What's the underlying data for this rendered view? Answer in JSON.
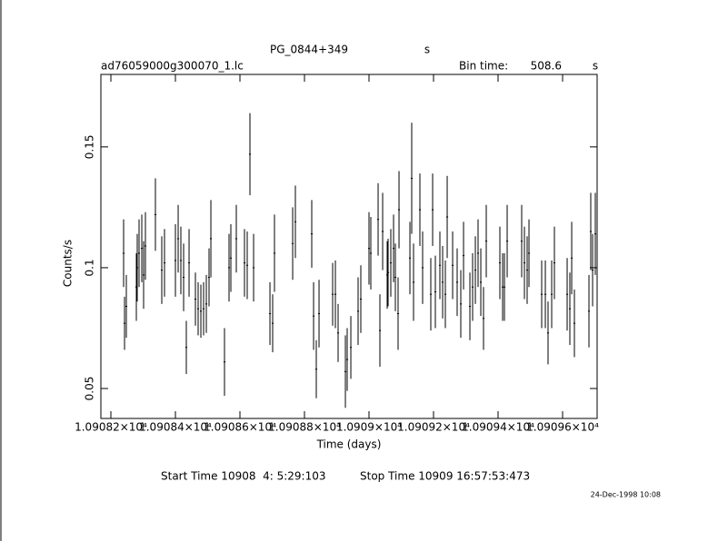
{
  "chart_data": {
    "type": "errorbar",
    "title": "PG_0844+349",
    "title_unit": "s",
    "subtitle": "ad76059000g300070_1.lc",
    "bin_time_label": "Bin time:",
    "bin_time": 508.6,
    "bin_time_unit": "s",
    "xlabel": "Time (days)",
    "ylabel": "Counts/s",
    "start_time": "Start Time 10908  4: 5:29:103",
    "stop_time": "Stop Time 10909 16:57:53:473",
    "date": "24-Dec-1998 10:08",
    "xlim": [
      10908.169,
      10909.707
    ],
    "xticks": [
      {
        "value": 10908.2,
        "label": "1.09082×10⁴"
      },
      {
        "value": 10908.4,
        "label": "1.09084×10⁴"
      },
      {
        "value": 10908.6,
        "label": "1.09086×10⁴"
      },
      {
        "value": 10908.8,
        "label": "1.09088×10⁴"
      },
      {
        "value": 10909.0,
        "label": "1.0909×10⁴"
      },
      {
        "value": 10909.2,
        "label": "1.09092×10⁴"
      },
      {
        "value": 10909.4,
        "label": "1.09094×10⁴"
      },
      {
        "value": 10909.6,
        "label": "1.09096×10⁴"
      }
    ],
    "ylim": [
      0.0376,
      0.18
    ],
    "yticks": [
      0.05,
      0.1,
      0.15
    ],
    "series": [
      {
        "color": "#000000",
        "x": [
          10908.2394,
          10908.2423,
          10908.2479,
          10908.2789,
          10908.2817,
          10908.2873,
          10908.2958,
          10908.3014,
          10908.307,
          10908.338,
          10908.3577,
          10908.3662,
          10908.4,
          10908.4085,
          10908.4169,
          10908.4254,
          10908.4338,
          10908.4423,
          10908.462,
          10908.4704,
          10908.4789,
          10908.4873,
          10908.4958,
          10908.5042,
          10908.5099,
          10908.5521,
          10908.5662,
          10908.5718,
          10908.5887,
          10908.6141,
          10908.6225,
          10908.631,
          10908.6423,
          10908.693,
          10908.7014,
          10908.707,
          10908.7634,
          10908.7718,
          10908.8225,
          10908.8282,
          10908.8366,
          10908.8451,
          10908.8873,
          10908.8958,
          10908.9042,
          10908.9268,
          10908.9324,
          10908.9437,
          10908.9662,
          10908.9746,
          10909.0,
          10909.0056,
          10909.0282,
          10909.0338,
          10909.0423,
          10909.0563,
          10909.0592,
          10909.0676,
          10909.0761,
          10909.0817,
          10909.0901,
          10909.093,
          10909.1268,
          10909.1324,
          10909.138,
          10909.1577,
          10909.1662,
          10909.1915,
          10909.1972,
          10909.2056,
          10909.2197,
          10909.2282,
          10909.2366,
          10909.2423,
          10909.2592,
          10909.2732,
          10909.2845,
          10909.293,
          10909.3127,
          10909.3211,
          10909.3296,
          10909.338,
          10909.3465,
          10909.3549,
          10909.3634,
          10909.4056,
          10909.4141,
          10909.4197,
          10909.4282,
          10909.4732,
          10909.4817,
          10909.4901,
          10909.4958,
          10909.5352,
          10909.5465,
          10909.5549,
          10909.5662,
          10909.5746,
          10909.6141,
          10909.6225,
          10909.6282,
          10909.6366,
          10909.6817,
          10909.6873,
          10909.693,
          10909.7014
        ],
        "values": [
          0.106,
          0.077,
          0.084,
          0.092,
          0.1,
          0.106,
          0.108,
          0.097,
          0.109,
          0.122,
          0.099,
          0.102,
          0.103,
          0.112,
          0.103,
          0.096,
          0.067,
          0.102,
          0.087,
          0.083,
          0.082,
          0.083,
          0.085,
          0.096,
          0.112,
          0.061,
          0.1,
          0.104,
          0.112,
          0.102,
          0.101,
          0.147,
          0.1,
          0.081,
          0.077,
          0.106,
          0.11,
          0.119,
          0.114,
          0.08,
          0.058,
          0.081,
          0.089,
          0.089,
          0.073,
          0.057,
          0.062,
          0.067,
          0.082,
          0.087,
          0.108,
          0.106,
          0.12,
          0.074,
          0.115,
          0.097,
          0.098,
          0.102,
          0.108,
          0.096,
          0.081,
          0.124,
          0.104,
          0.137,
          0.094,
          0.124,
          0.1,
          0.089,
          0.124,
          0.09,
          0.101,
          0.094,
          0.089,
          0.121,
          0.101,
          0.094,
          0.085,
          0.105,
          0.084,
          0.092,
          0.099,
          0.106,
          0.094,
          0.079,
          0.111,
          0.102,
          0.092,
          0.092,
          0.111,
          0.111,
          0.102,
          0.099,
          0.106,
          0.089,
          0.089,
          0.073,
          0.089,
          0.102,
          0.089,
          0.083,
          0.104,
          0.077,
          0.082,
          0.115,
          0.099,
          0.114
        ],
        "errors": [
          0.014,
          0.011,
          0.013,
          0.014,
          0.014,
          0.014,
          0.014,
          0.014,
          0.014,
          0.015,
          0.014,
          0.014,
          0.015,
          0.014,
          0.014,
          0.014,
          0.011,
          0.014,
          0.011,
          0.011,
          0.011,
          0.011,
          0.012,
          0.012,
          0.016,
          0.014,
          0.014,
          0.014,
          0.014,
          0.014,
          0.014,
          0.017,
          0.014,
          0.013,
          0.012,
          0.016,
          0.015,
          0.015,
          0.014,
          0.014,
          0.012,
          0.014,
          0.013,
          0.014,
          0.012,
          0.015,
          0.013,
          0.013,
          0.014,
          0.014,
          0.015,
          0.015,
          0.015,
          0.015,
          0.016,
          0.014,
          0.014,
          0.014,
          0.014,
          0.014,
          0.015,
          0.016,
          0.015,
          0.023,
          0.016,
          0.015,
          0.015,
          0.015,
          0.015,
          0.015,
          0.014,
          0.015,
          0.014,
          0.017,
          0.014,
          0.014,
          0.014,
          0.014,
          0.014,
          0.014,
          0.014,
          0.014,
          0.014,
          0.013,
          0.015,
          0.015,
          0.014,
          0.014,
          0.015,
          0.015,
          0.015,
          0.014,
          0.014,
          0.014,
          0.014,
          0.013,
          0.014,
          0.015,
          0.015,
          0.015,
          0.015,
          0.014,
          0.015,
          0.016,
          0.015,
          0.017
        ]
      }
    ]
  }
}
